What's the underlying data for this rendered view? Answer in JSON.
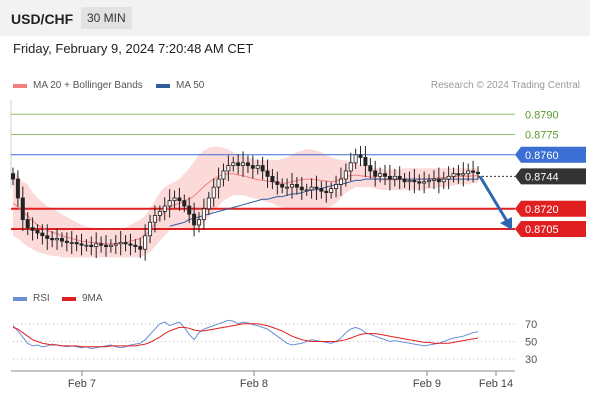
{
  "header": {
    "title": "USD/CHF",
    "timeframe": "30 MIN",
    "date": "Friday, February 9, 2024 7:20:48 AM CET"
  },
  "legend": {
    "ma_bb": "MA 20 + Bollinger Bands",
    "ma50": "MA 50",
    "credit": "Research © 2024 Trading Central",
    "rsi": "RSI",
    "rsi_ma": "9MA"
  },
  "colors": {
    "ma20": "#f08080",
    "ma50": "#2f5d9e",
    "bands": "#fbd4d4",
    "candle": "#222222",
    "resistance": "#8cc06a",
    "current": "#333333",
    "upper_level": "#3b6fd4",
    "support": "#e02020",
    "rsi": "#6a8ed8",
    "rsi_ma": "#e02020",
    "arrow": "#2f66b0"
  },
  "chart_data": [
    {
      "type": "candlestick",
      "title": "USD/CHF",
      "x_ticks": [
        "Feb 7",
        "Feb 8",
        "Feb 9",
        "Feb 14"
      ],
      "ylim": [
        0.8665,
        0.8805
      ],
      "levels": [
        {
          "value": 0.879,
          "label": "0.8790",
          "kind": "resistance"
        },
        {
          "value": 0.8775,
          "label": "0.8775",
          "kind": "resistance"
        },
        {
          "value": 0.876,
          "label": "0.8760",
          "kind": "upper"
        },
        {
          "value": 0.8744,
          "label": "0.8744",
          "kind": "current"
        },
        {
          "value": 0.872,
          "label": "0.8720",
          "kind": "support"
        },
        {
          "value": 0.8705,
          "label": "0.8705",
          "kind": "support"
        }
      ],
      "price_path": [
        0.8742,
        0.8728,
        0.8712,
        0.8706,
        0.8704,
        0.8702,
        0.87,
        0.8698,
        0.8697,
        0.8698,
        0.8696,
        0.8695,
        0.8695,
        0.8694,
        0.8693,
        0.8693,
        0.8692,
        0.8694,
        0.8693,
        0.8692,
        0.8693,
        0.8694,
        0.8695,
        0.8694,
        0.8693,
        0.8692,
        0.869,
        0.87,
        0.871,
        0.8715,
        0.8718,
        0.8722,
        0.8726,
        0.8728,
        0.8726,
        0.8722,
        0.8716,
        0.8708,
        0.8712,
        0.872,
        0.8728,
        0.8736,
        0.8742,
        0.8748,
        0.8752,
        0.8754,
        0.8752,
        0.8754,
        0.8752,
        0.875,
        0.8752,
        0.8748,
        0.8744,
        0.874,
        0.8738,
        0.8736,
        0.8736,
        0.8738,
        0.8736,
        0.8734,
        0.8734,
        0.8736,
        0.8735,
        0.8733,
        0.8732,
        0.8735,
        0.8738,
        0.8742,
        0.8748,
        0.8754,
        0.876,
        0.8758,
        0.8752,
        0.8748,
        0.8744,
        0.8746,
        0.8744,
        0.8742,
        0.8744,
        0.8742,
        0.874,
        0.8741,
        0.874,
        0.8739,
        0.874,
        0.8741,
        0.8742,
        0.874,
        0.8742,
        0.8744,
        0.8746,
        0.8745,
        0.8746,
        0.8748,
        0.8747,
        0.8746
      ],
      "bb_upper": [
        0.8748,
        0.8745,
        0.874,
        0.8738,
        0.8732,
        0.8728,
        0.8725,
        0.8722,
        0.872,
        0.8718,
        0.8716,
        0.8714,
        0.8712,
        0.871,
        0.8708,
        0.8707,
        0.8706,
        0.8706,
        0.8705,
        0.8704,
        0.8704,
        0.8705,
        0.8705,
        0.8706,
        0.8708,
        0.871,
        0.8712,
        0.8715,
        0.872,
        0.8726,
        0.8732,
        0.8736,
        0.8738,
        0.874,
        0.8742,
        0.8746,
        0.875,
        0.8755,
        0.876,
        0.8763,
        0.8765,
        0.8766,
        0.8766,
        0.8765,
        0.8764,
        0.8762,
        0.876,
        0.8759,
        0.8758,
        0.8757,
        0.8756,
        0.8756,
        0.8756,
        0.8756,
        0.8756,
        0.8757,
        0.8758,
        0.876,
        0.8762,
        0.8763,
        0.8764,
        0.8764,
        0.8763,
        0.8762,
        0.876,
        0.8758,
        0.8757,
        0.8756,
        0.8756,
        0.8755,
        0.8754,
        0.8753,
        0.8752,
        0.8751,
        0.875,
        0.875,
        0.8749,
        0.8749,
        0.8749,
        0.8749,
        0.875,
        0.875,
        0.875,
        0.875,
        0.875,
        0.875,
        0.875,
        0.875,
        0.875,
        0.875,
        0.875,
        0.875,
        0.875,
        0.875,
        0.875,
        0.875
      ],
      "bb_lower": [
        0.87,
        0.8698,
        0.8695,
        0.8692,
        0.869,
        0.8688,
        0.8687,
        0.8686,
        0.8685,
        0.8685,
        0.8684,
        0.8684,
        0.8684,
        0.8684,
        0.8684,
        0.8684,
        0.8684,
        0.8684,
        0.8684,
        0.8684,
        0.8684,
        0.8684,
        0.8684,
        0.8684,
        0.8684,
        0.8684,
        0.8684,
        0.8686,
        0.8688,
        0.8692,
        0.8696,
        0.87,
        0.8704,
        0.8706,
        0.8706,
        0.8706,
        0.8704,
        0.8704,
        0.8706,
        0.871,
        0.8714,
        0.8718,
        0.8722,
        0.8726,
        0.8728,
        0.873,
        0.873,
        0.873,
        0.8729,
        0.8728,
        0.8727,
        0.8726,
        0.8725,
        0.8724,
        0.8722,
        0.8721,
        0.872,
        0.872,
        0.872,
        0.872,
        0.872,
        0.872,
        0.872,
        0.872,
        0.8721,
        0.8722,
        0.8724,
        0.8728,
        0.8732,
        0.8734,
        0.8736,
        0.8736,
        0.8736,
        0.8736,
        0.8735,
        0.8734,
        0.8734,
        0.8734,
        0.8734,
        0.8734,
        0.8734,
        0.8734,
        0.8734,
        0.8734,
        0.8734,
        0.8735,
        0.8735,
        0.8736,
        0.8736,
        0.8737,
        0.8737,
        0.8738,
        0.8738,
        0.8738,
        0.8739,
        0.8739
      ],
      "ma50": [
        null,
        null,
        null,
        null,
        null,
        null,
        null,
        null,
        null,
        null,
        null,
        null,
        null,
        null,
        null,
        null,
        null,
        null,
        null,
        null,
        null,
        null,
        null,
        null,
        null,
        null,
        null,
        null,
        null,
        null,
        null,
        null,
        0.8707,
        0.8708,
        0.8709,
        0.871,
        0.8712,
        0.8713,
        0.8714,
        0.8715,
        0.8716,
        0.8717,
        0.8718,
        0.8719,
        0.872,
        0.8721,
        0.8722,
        0.8723,
        0.8724,
        0.8725,
        0.8726,
        0.8727,
        0.8727,
        0.8728,
        0.8729,
        0.8729,
        0.873,
        0.8731,
        0.8731,
        0.8732,
        0.8733,
        0.8734,
        0.8734,
        0.8735,
        0.8736,
        0.8737,
        0.8738,
        0.8738,
        0.8739,
        0.874,
        0.8741,
        0.8741,
        0.8742,
        0.8742,
        0.8742,
        0.8742,
        0.8742,
        0.8742,
        0.8742,
        0.8742,
        0.8742,
        0.8742,
        0.8742,
        0.8742,
        0.8742,
        0.8742,
        0.8742,
        0.8742,
        0.8742,
        0.8742,
        0.8742,
        0.8742,
        0.8742,
        0.8742,
        0.8742,
        0.8742
      ],
      "forecast_arrow": {
        "from": 0.8744,
        "to": 0.8705
      }
    },
    {
      "type": "line",
      "title": "RSI",
      "y_ticks": [
        70,
        50,
        30
      ],
      "ylim": [
        20,
        80
      ],
      "series": [
        {
          "name": "RSI",
          "values": [
            68,
            62,
            55,
            48,
            45,
            46,
            44,
            45,
            47,
            46,
            45,
            44,
            45,
            44,
            43,
            44,
            42,
            43,
            44,
            45,
            46,
            44,
            43,
            44,
            46,
            47,
            48,
            52,
            58,
            64,
            70,
            72,
            68,
            70,
            72,
            66,
            58,
            52,
            60,
            64,
            66,
            68,
            70,
            72,
            74,
            73,
            70,
            72,
            71,
            69,
            68,
            66,
            64,
            60,
            56,
            52,
            48,
            46,
            47,
            48,
            50,
            52,
            51,
            50,
            49,
            48,
            50,
            54,
            60,
            64,
            66,
            64,
            60,
            58,
            56,
            54,
            52,
            50,
            51,
            50,
            49,
            48,
            47,
            46,
            45,
            46,
            47,
            48,
            50,
            52,
            54,
            55,
            56,
            58,
            60,
            61
          ]
        },
        {
          "name": "9MA",
          "values": [
            66,
            64,
            60,
            56,
            52,
            50,
            48,
            47,
            46,
            46,
            45,
            45,
            45,
            45,
            44,
            44,
            44,
            44,
            44,
            44,
            45,
            45,
            45,
            45,
            45,
            45,
            46,
            47,
            49,
            52,
            55,
            59,
            62,
            64,
            66,
            66,
            65,
            63,
            62,
            62,
            63,
            64,
            65,
            66,
            67,
            68,
            69,
            70,
            70,
            70,
            70,
            69,
            68,
            66,
            64,
            62,
            59,
            56,
            54,
            52,
            51,
            50,
            50,
            50,
            50,
            50,
            50,
            51,
            52,
            54,
            56,
            58,
            59,
            59,
            59,
            58,
            57,
            56,
            55,
            54,
            53,
            52,
            51,
            50,
            49,
            49,
            48,
            48,
            48,
            48,
            49,
            50,
            51,
            52,
            53,
            54
          ]
        }
      ]
    }
  ]
}
